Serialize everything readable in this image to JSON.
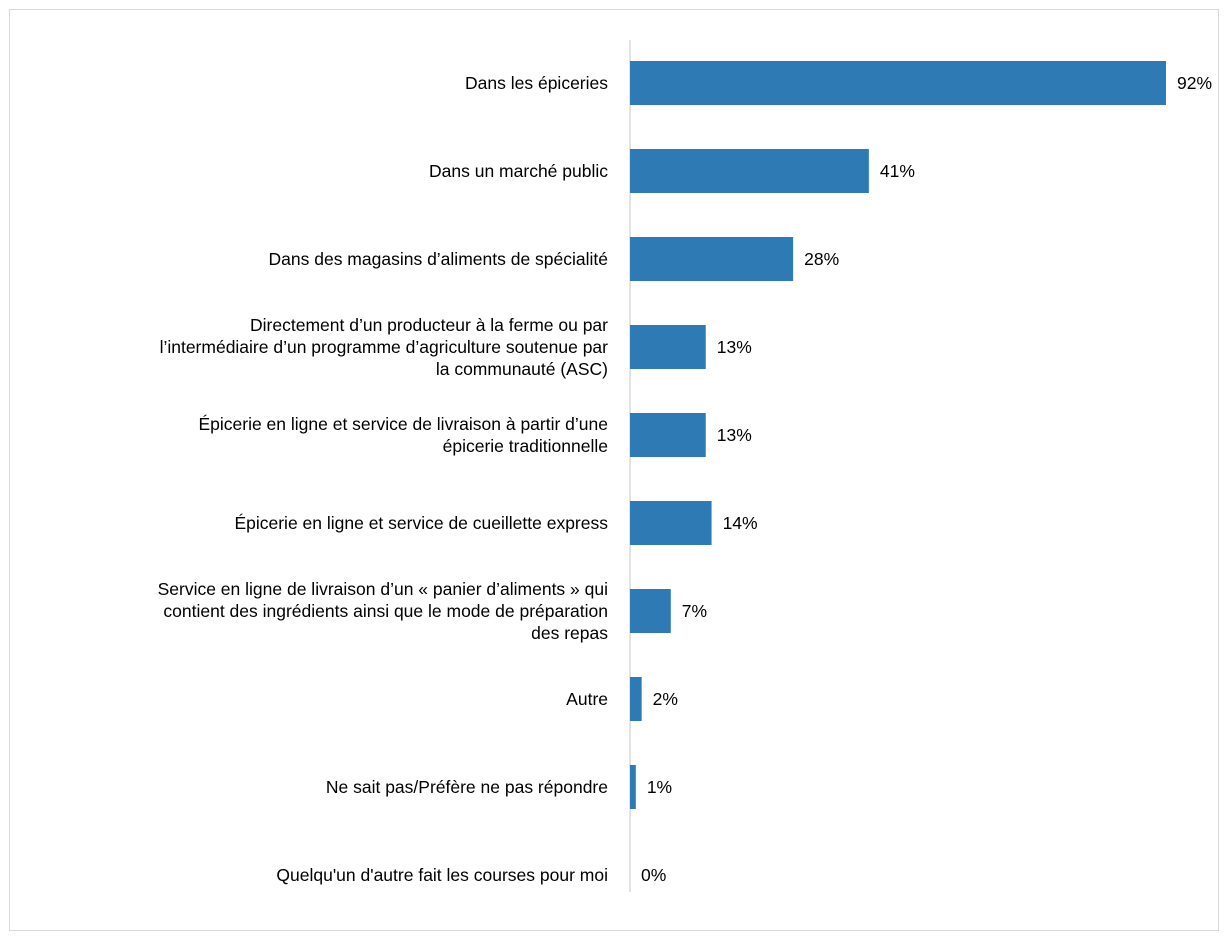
{
  "chart_data": {
    "type": "bar",
    "orientation": "horizontal",
    "title": "",
    "xlabel": "",
    "ylabel": "",
    "xlim": [
      0,
      92
    ],
    "grid": false,
    "legend": "none",
    "bar_color": "#2e7ab5",
    "categories": [
      [
        "Dans les épiceries"
      ],
      [
        "Dans un marché public"
      ],
      [
        "Dans des magasins d’aliments de spécialité"
      ],
      [
        "Directement d’un producteur à la ferme ou par",
        "l’intermédiaire d’un programme d’agriculture soutenue par",
        "la communauté (ASC)"
      ],
      [
        "Épicerie en ligne et service de livraison à partir d’une",
        "épicerie traditionnelle"
      ],
      [
        "Épicerie en ligne et service de cueillette express"
      ],
      [
        "Service en ligne de livraison d’un « panier d’aliments » qui",
        "contient des ingrédients ainsi que le mode de préparation",
        "des repas"
      ],
      [
        "Autre"
      ],
      [
        "Ne sait pas/Préfère ne pas répondre"
      ],
      [
        "Quelqu'un d'autre fait les courses pour moi"
      ]
    ],
    "values": [
      92,
      41,
      28,
      13,
      13,
      14,
      7,
      2,
      1,
      0
    ],
    "data_labels": [
      "92%",
      "41%",
      "28%",
      "13%",
      "13%",
      "14%",
      "7%",
      "2%",
      "1%",
      "0%"
    ]
  }
}
